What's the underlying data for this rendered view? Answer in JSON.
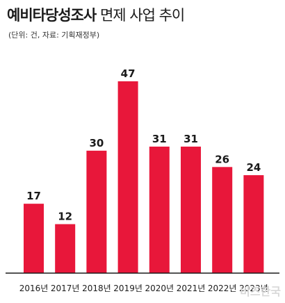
{
  "header": {
    "title_bold": "예비타당성조사",
    "title_rest": "면제 사업 추이",
    "source_note": "(단위: 건, 자료: 기획재정부)"
  },
  "chart_data": {
    "type": "bar",
    "title": "예비타당성조사 면제 사업 추이",
    "subtitle": "(단위: 건, 자료: 기획재정부)",
    "categories": [
      "2016년",
      "2017년",
      "2018년",
      "2019년",
      "2020년",
      "2021년",
      "2022년",
      "2023년"
    ],
    "values": [
      17,
      12,
      30,
      47,
      31,
      31,
      26,
      24
    ],
    "ylim": [
      0,
      50
    ],
    "grid": false,
    "legend": "none",
    "bar_color": "#e8173a"
  },
  "watermark": "비즈한국"
}
